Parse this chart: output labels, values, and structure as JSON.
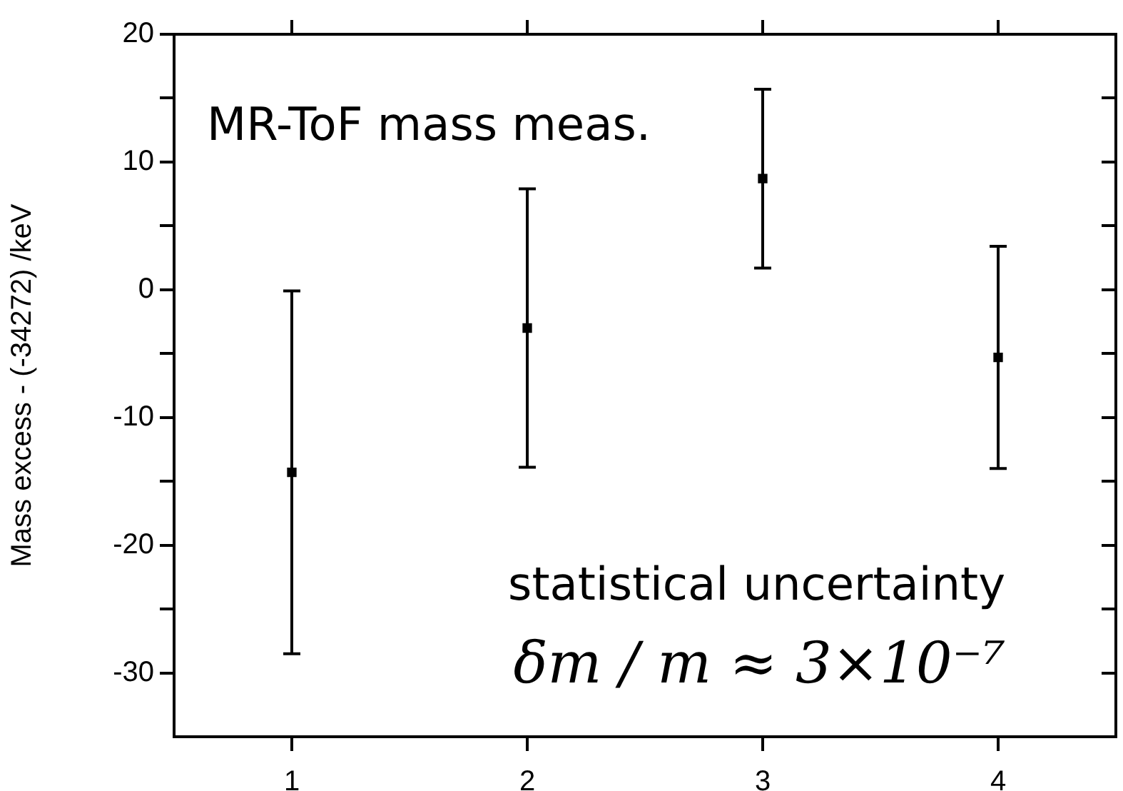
{
  "chart_data": {
    "type": "scatter",
    "ylabel": "Mass excess - (-34272) /keV",
    "x": [
      1,
      2,
      3,
      4
    ],
    "series": [
      {
        "color": "#000000",
        "values": [
          -14.3,
          -3.0,
          8.7,
          -5.3
        ],
        "errors": [
          14.2,
          10.9,
          7.0,
          8.7
        ]
      }
    ],
    "xlim": [
      0.5,
      4.5
    ],
    "xticks": [
      1,
      2,
      3,
      4
    ],
    "ylim": [
      -35,
      20
    ],
    "yticks": [
      -30,
      {
        "value": -25,
        "label": null
      },
      -20,
      {
        "value": -15,
        "label": null
      },
      -10,
      {
        "value": -5,
        "label": null
      },
      0,
      {
        "value": 5,
        "label": null
      },
      10,
      {
        "value": 15,
        "label": null
      },
      20
    ],
    "marker": "square",
    "grid": false,
    "legend": false,
    "annotations": [
      "MR-ToF mass meas.",
      "statistical uncertainty",
      "δm / m ≈ 3×10⁻⁷"
    ]
  }
}
